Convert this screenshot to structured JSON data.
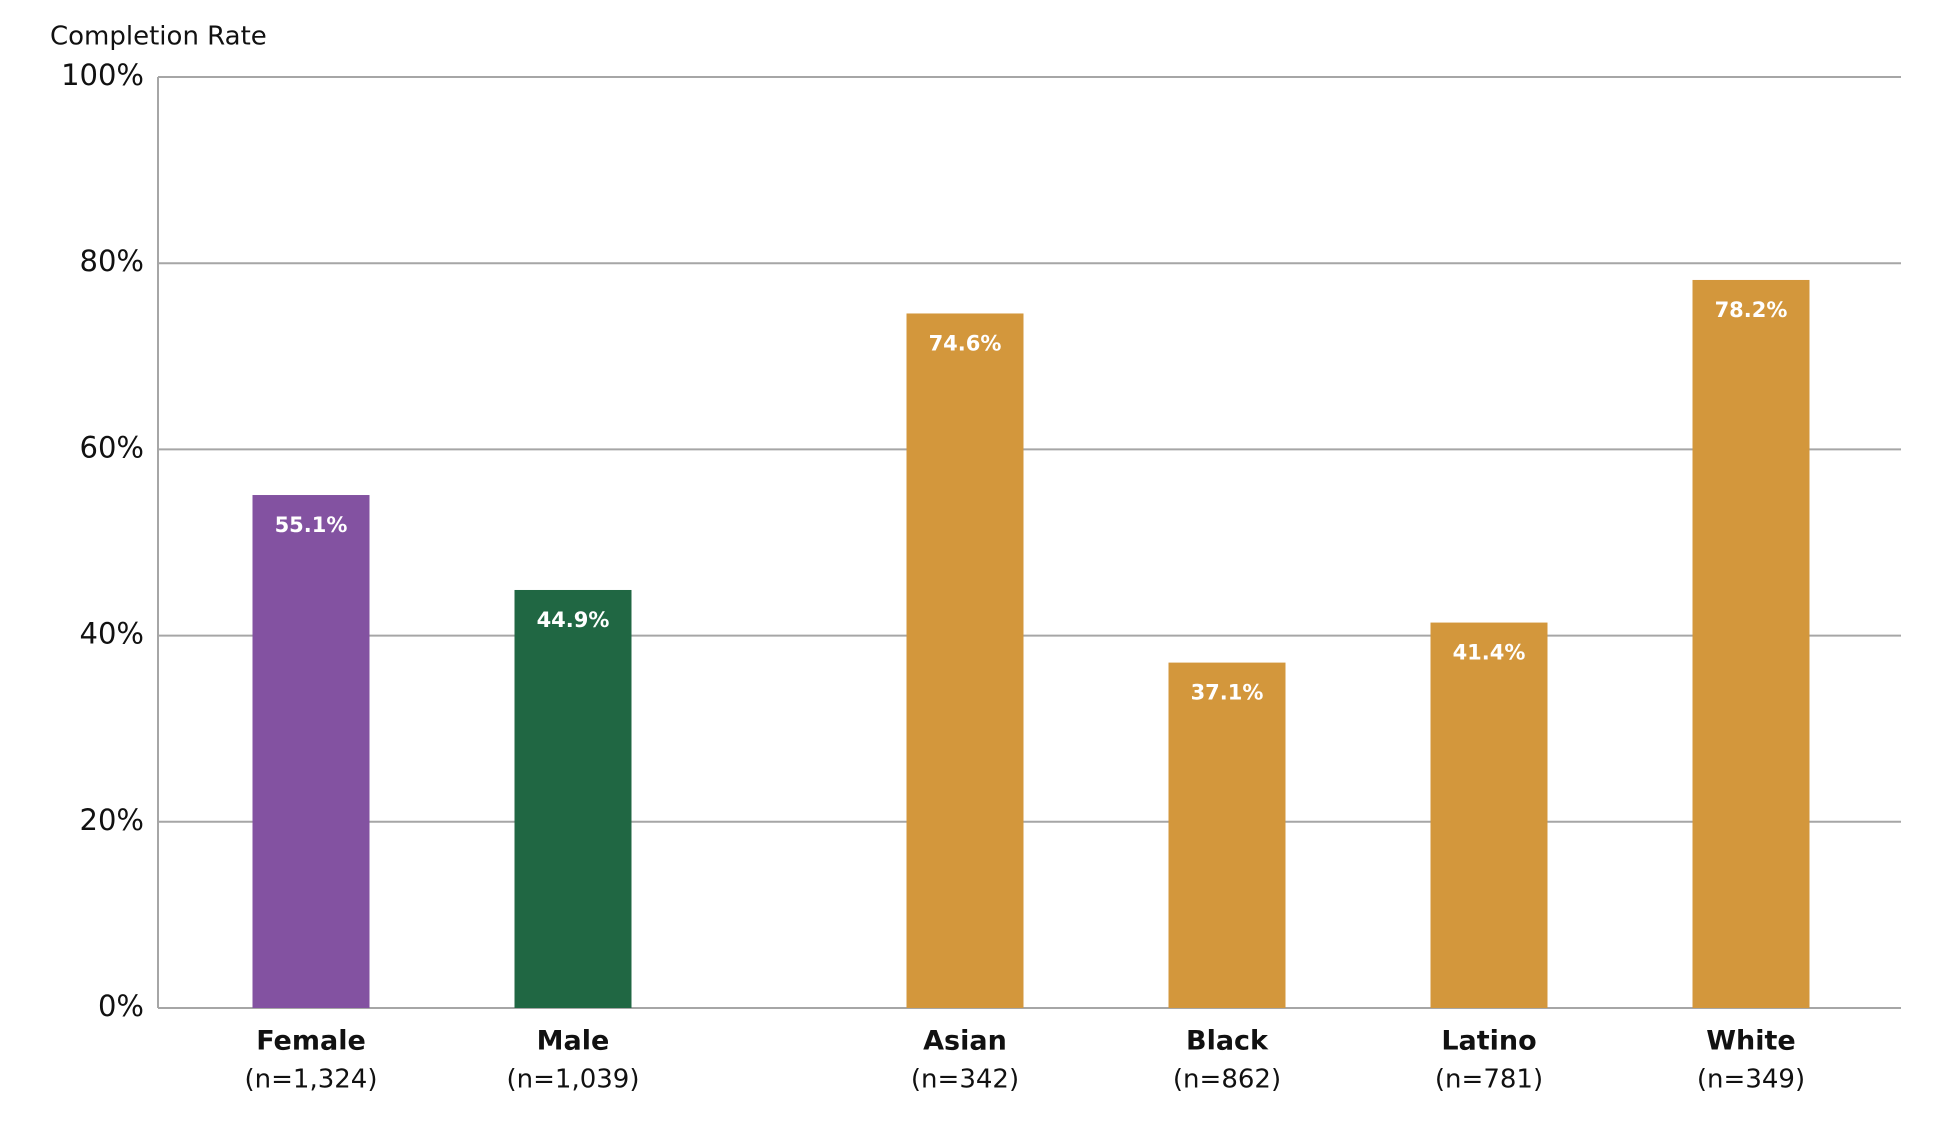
{
  "chart_data": {
    "type": "bar",
    "y_axis_label": "Completion Rate",
    "categories": [
      "Female",
      "Male",
      "Asian",
      "Black",
      "Latino",
      "White"
    ],
    "category_notes": [
      "(n=1,324)",
      "(n=1,039)",
      "(n=342)",
      "(n=862)",
      "(n=781)",
      "(n=349)"
    ],
    "values": [
      55.1,
      44.9,
      74.6,
      37.1,
      41.4,
      78.2
    ],
    "value_labels": [
      "55.1%",
      "44.9%",
      "74.6%",
      "37.1%",
      "41.4%",
      "78.2%"
    ],
    "colors": [
      "#8352a1",
      "#206743",
      "#d3973c",
      "#d3973c",
      "#d3973c",
      "#d3973c"
    ],
    "ylim": [
      0,
      100
    ],
    "yticks": [
      {
        "value": 0,
        "label": "0%"
      },
      {
        "value": 20,
        "label": "20%"
      },
      {
        "value": 40,
        "label": "40%"
      },
      {
        "value": 60,
        "label": "60%"
      },
      {
        "value": 80,
        "label": "80%"
      },
      {
        "value": 100,
        "label": "100%"
      }
    ],
    "grid": true
  }
}
